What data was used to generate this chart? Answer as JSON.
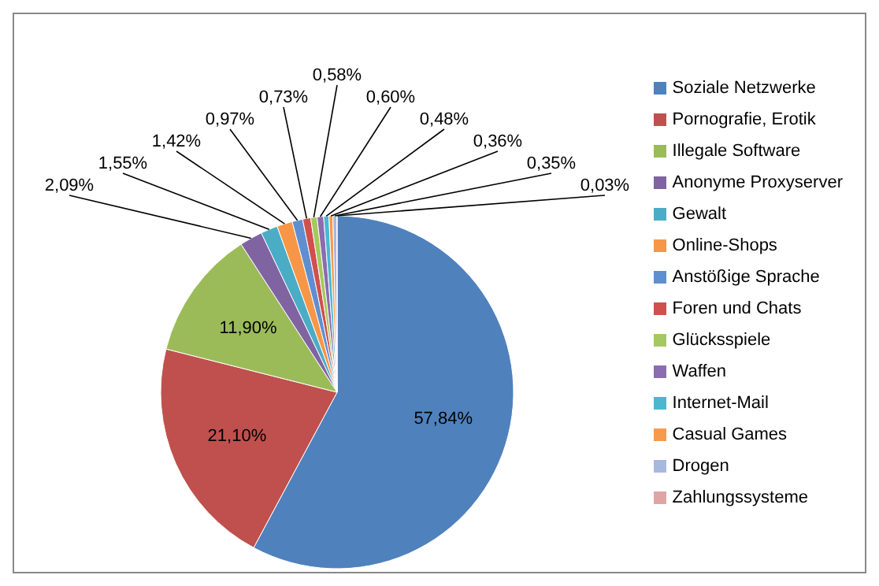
{
  "chart_data": {
    "type": "pie",
    "categories": [
      "Soziale Netzwerke",
      "Pornografie, Erotik",
      "Illegale Software",
      "Anonyme Proxyserver",
      "Gewalt",
      "Online-Shops",
      "Anstößige Sprache",
      "Foren und Chats",
      "Glücksspiele",
      "Waffen",
      "Internet-Mail",
      "Casual Games",
      "Drogen",
      "Zahlungssysteme"
    ],
    "values": [
      57.84,
      21.1,
      11.9,
      2.09,
      1.55,
      1.42,
      0.97,
      0.73,
      0.58,
      0.6,
      0.48,
      0.36,
      0.35,
      0.03
    ],
    "value_labels": [
      "57,84%",
      "21,10%",
      "11,90%",
      "2,09%",
      "1,55%",
      "1,42%",
      "0,97%",
      "0,73%",
      "0,58%",
      "0,60%",
      "0,48%",
      "0,36%",
      "0,35%",
      "0,03%"
    ],
    "colors": [
      "#4f81bd",
      "#c0504d",
      "#9bbb59",
      "#8064a2",
      "#4bacc6",
      "#f79646",
      "#5f8fd0",
      "#d0504d",
      "#a5c85f",
      "#8c6cb0",
      "#4bb8d0",
      "#f99a4a",
      "#a6b8db",
      "#dfa5a5"
    ],
    "legend": "right"
  }
}
